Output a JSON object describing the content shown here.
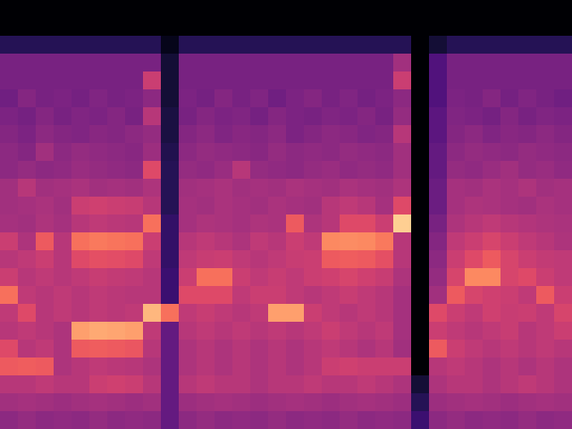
{
  "chart_data": {
    "type": "heatmap",
    "tick_labels": false,
    "zlim": [
      0,
      100
    ],
    "cells": [
      [
        0,
        0,
        0,
        0,
        0,
        0,
        0,
        0,
        0,
        0,
        0,
        0,
        0,
        0,
        0,
        0,
        0,
        0,
        0,
        0,
        0,
        0,
        0,
        0,
        0,
        0,
        0,
        0,
        0,
        0,
        0,
        0
      ],
      [
        0,
        0,
        0,
        0,
        0,
        0,
        0,
        0,
        0,
        0,
        0,
        0,
        0,
        0,
        0,
        0,
        0,
        0,
        0,
        0,
        0,
        0,
        0,
        0,
        0,
        0,
        0,
        0,
        0,
        0,
        0,
        0
      ],
      [
        15,
        15,
        15,
        15,
        15,
        15,
        15,
        15,
        15,
        5,
        15,
        15,
        15,
        15,
        15,
        15,
        15,
        15,
        15,
        15,
        15,
        15,
        15,
        0,
        10,
        15,
        15,
        15,
        15,
        15,
        15,
        15
      ],
      [
        35,
        35,
        35,
        35,
        35,
        35,
        35,
        35,
        35,
        10,
        35,
        35,
        35,
        35,
        35,
        35,
        35,
        35,
        35,
        35,
        35,
        35,
        45,
        0,
        25,
        35,
        35,
        35,
        35,
        35,
        35,
        35
      ],
      [
        35,
        35,
        35,
        35,
        35,
        35,
        35,
        35,
        55,
        10,
        35,
        35,
        35,
        35,
        35,
        35,
        35,
        35,
        35,
        35,
        35,
        35,
        55,
        0,
        25,
        35,
        35,
        35,
        35,
        35,
        35,
        35
      ],
      [
        33,
        38,
        35,
        36,
        34,
        37,
        35,
        36,
        40,
        10,
        36,
        34,
        38,
        35,
        37,
        33,
        36,
        38,
        35,
        37,
        34,
        36,
        40,
        0,
        25,
        36,
        35,
        38,
        34,
        37,
        35,
        33
      ],
      [
        36,
        34,
        38,
        35,
        37,
        36,
        38,
        35,
        50,
        12,
        35,
        38,
        36,
        37,
        34,
        38,
        36,
        35,
        37,
        36,
        38,
        35,
        42,
        0,
        28,
        37,
        36,
        34,
        38,
        35,
        37,
        36
      ],
      [
        38,
        36,
        40,
        38,
        37,
        39,
        38,
        40,
        42,
        12,
        38,
        40,
        37,
        39,
        38,
        40,
        36,
        38,
        40,
        39,
        37,
        38,
        50,
        0,
        28,
        38,
        40,
        37,
        39,
        38,
        40,
        38
      ],
      [
        40,
        38,
        45,
        40,
        42,
        41,
        40,
        39,
        44,
        14,
        40,
        42,
        41,
        40,
        39,
        42,
        40,
        41,
        40,
        42,
        41,
        40,
        45,
        0,
        30,
        40,
        42,
        41,
        40,
        42,
        41,
        40
      ],
      [
        40,
        42,
        40,
        41,
        43,
        42,
        41,
        40,
        60,
        15,
        42,
        41,
        43,
        50,
        42,
        41,
        40,
        42,
        43,
        41,
        42,
        41,
        45,
        0,
        30,
        42,
        41,
        43,
        45,
        42,
        43,
        41
      ],
      [
        45,
        50,
        45,
        46,
        47,
        45,
        46,
        45,
        48,
        15,
        45,
        46,
        47,
        45,
        46,
        45,
        47,
        46,
        45,
        47,
        46,
        45,
        48,
        0,
        32,
        46,
        45,
        47,
        46,
        48,
        45,
        46
      ],
      [
        45,
        46,
        47,
        45,
        55,
        56,
        55,
        54,
        50,
        15,
        46,
        45,
        47,
        46,
        45,
        47,
        46,
        45,
        50,
        52,
        50,
        46,
        60,
        0,
        32,
        46,
        48,
        47,
        46,
        45,
        47,
        46
      ],
      [
        46,
        45,
        48,
        46,
        50,
        52,
        51,
        50,
        70,
        18,
        46,
        48,
        47,
        46,
        48,
        47,
        65,
        48,
        50,
        60,
        60,
        55,
        90,
        0,
        35,
        48,
        50,
        52,
        50,
        49,
        48,
        47
      ],
      [
        55,
        48,
        65,
        50,
        70,
        72,
        71,
        70,
        55,
        18,
        50,
        52,
        50,
        48,
        52,
        50,
        55,
        52,
        75,
        76,
        75,
        72,
        50,
        0,
        38,
        52,
        55,
        58,
        55,
        52,
        50,
        48
      ],
      [
        50,
        52,
        55,
        50,
        60,
        62,
        61,
        60,
        52,
        18,
        52,
        54,
        55,
        52,
        50,
        52,
        54,
        55,
        65,
        66,
        65,
        62,
        50,
        0,
        40,
        55,
        60,
        65,
        58,
        55,
        53,
        52
      ],
      [
        55,
        50,
        52,
        50,
        52,
        54,
        53,
        52,
        50,
        20,
        55,
        70,
        70,
        55,
        52,
        54,
        52,
        55,
        56,
        58,
        56,
        54,
        48,
        0,
        42,
        58,
        75,
        75,
        58,
        60,
        55,
        52
      ],
      [
        70,
        52,
        50,
        52,
        50,
        52,
        51,
        50,
        50,
        20,
        60,
        60,
        60,
        52,
        55,
        55,
        52,
        50,
        52,
        54,
        52,
        50,
        46,
        0,
        45,
        65,
        58,
        56,
        55,
        52,
        65,
        55
      ],
      [
        52,
        60,
        50,
        52,
        50,
        52,
        51,
        52,
        85,
        70,
        52,
        54,
        52,
        50,
        52,
        80,
        80,
        55,
        52,
        50,
        52,
        50,
        46,
        0,
        60,
        55,
        52,
        56,
        54,
        55,
        52,
        58
      ],
      [
        50,
        52,
        50,
        48,
        80,
        82,
        81,
        80,
        52,
        30,
        50,
        52,
        50,
        52,
        50,
        52,
        50,
        52,
        55,
        52,
        50,
        52,
        46,
        0,
        55,
        52,
        50,
        52,
        54,
        50,
        52,
        55
      ],
      [
        60,
        50,
        52,
        48,
        65,
        66,
        65,
        64,
        50,
        30,
        48,
        50,
        48,
        50,
        48,
        50,
        48,
        50,
        52,
        50,
        48,
        50,
        45,
        0,
        65,
        55,
        52,
        50,
        52,
        50,
        52,
        50
      ],
      [
        65,
        66,
        65,
        48,
        50,
        52,
        51,
        50,
        48,
        30,
        48,
        50,
        48,
        50,
        48,
        50,
        48,
        50,
        55,
        56,
        55,
        55,
        55,
        0,
        50,
        52,
        50,
        48,
        50,
        48,
        50,
        48
      ],
      [
        50,
        50,
        52,
        50,
        50,
        55,
        56,
        55,
        50,
        30,
        50,
        52,
        50,
        50,
        48,
        50,
        50,
        52,
        50,
        50,
        52,
        50,
        48,
        10,
        48,
        50,
        50,
        48,
        50,
        52,
        50,
        48
      ],
      [
        45,
        46,
        45,
        44,
        45,
        46,
        45,
        44,
        45,
        30,
        44,
        45,
        46,
        45,
        44,
        45,
        46,
        45,
        44,
        45,
        46,
        45,
        44,
        15,
        44,
        45,
        46,
        45,
        44,
        45,
        46,
        45
      ],
      [
        40,
        42,
        40,
        41,
        40,
        42,
        40,
        41,
        40,
        30,
        40,
        42,
        40,
        41,
        40,
        42,
        40,
        41,
        40,
        42,
        40,
        41,
        40,
        20,
        40,
        42,
        40,
        41,
        40,
        42,
        40,
        41
      ]
    ]
  }
}
